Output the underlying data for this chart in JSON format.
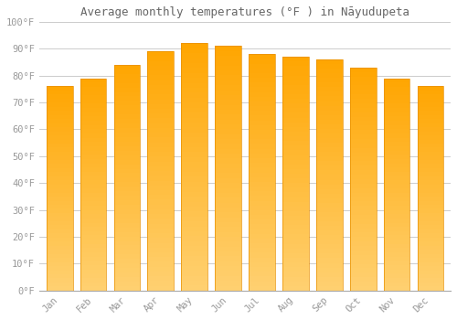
{
  "title": "Average monthly temperatures (°F ) in Nāyudupeta",
  "months": [
    "Jan",
    "Feb",
    "Mar",
    "Apr",
    "May",
    "Jun",
    "Jul",
    "Aug",
    "Sep",
    "Oct",
    "Nov",
    "Dec"
  ],
  "values": [
    76,
    79,
    84,
    89,
    92,
    91,
    88,
    87,
    86,
    83,
    79,
    76
  ],
  "bar_color_top": "#FFA500",
  "bar_color_bottom": "#FFD070",
  "bar_edge_color": "#E89000",
  "background_color": "#FFFFFF",
  "ylim": [
    0,
    100
  ],
  "yticks": [
    0,
    10,
    20,
    30,
    40,
    50,
    60,
    70,
    80,
    90,
    100
  ],
  "ytick_labels": [
    "0°F",
    "10°F",
    "20°F",
    "30°F",
    "40°F",
    "50°F",
    "60°F",
    "70°F",
    "80°F",
    "90°F",
    "100°F"
  ],
  "grid_color": "#CCCCCC",
  "title_fontsize": 9,
  "tick_fontsize": 7.5,
  "tick_color": "#999999",
  "title_color": "#666666"
}
